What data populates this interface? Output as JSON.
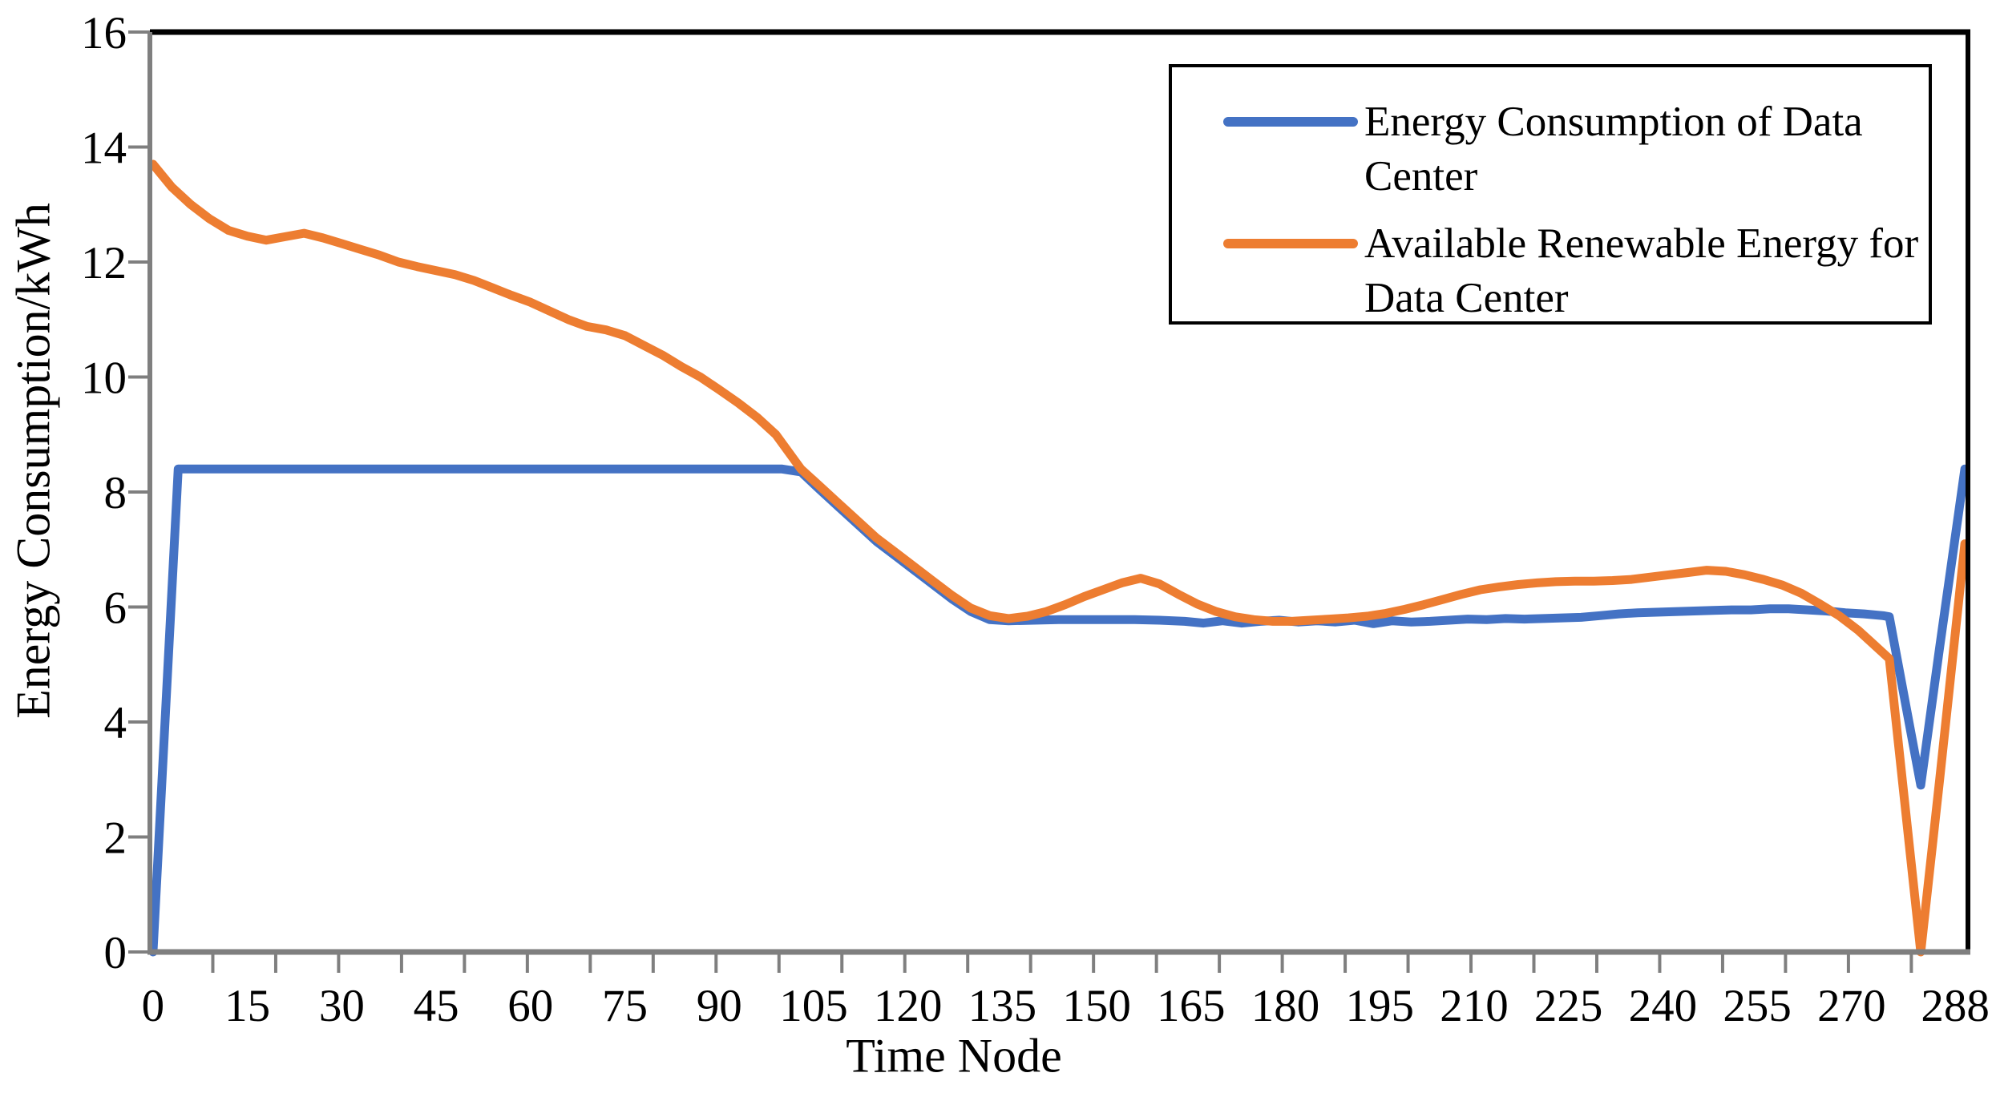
{
  "chart_data": {
    "type": "line",
    "grid": false,
    "background_color": "#ffffff",
    "plot_border_color": "#000000",
    "axis_line_color": "#7f7f7f",
    "x_axis": {
      "title": "Time Node",
      "range": [
        0,
        288
      ],
      "tick_labels": [
        "0",
        "15",
        "30",
        "45",
        "60",
        "75",
        "90",
        "105",
        "120",
        "135",
        "150",
        "165",
        "180",
        "195",
        "210",
        "225",
        "240",
        "255",
        "270",
        "288"
      ],
      "minor_tick_step": 10
    },
    "y_axis": {
      "title": "Energy Consumption/kWh",
      "range": [
        0,
        16
      ],
      "tick_step": 2,
      "tick_labels": [
        "0",
        "2",
        "4",
        "6",
        "8",
        "10",
        "12",
        "14",
        "16"
      ]
    },
    "legend": {
      "position": "top-right",
      "border": true
    },
    "series": [
      {
        "name": "Energy Consumption of Data Center",
        "color": "#4472C4",
        "points": [
          [
            0,
            0
          ],
          [
            4,
            8.4
          ],
          [
            10,
            8.4
          ],
          [
            20,
            8.4
          ],
          [
            30,
            8.4
          ],
          [
            40,
            8.4
          ],
          [
            50,
            8.4
          ],
          [
            60,
            8.4
          ],
          [
            70,
            8.4
          ],
          [
            80,
            8.4
          ],
          [
            90,
            8.4
          ],
          [
            95,
            8.4
          ],
          [
            100,
            8.4
          ],
          [
            103,
            8.35
          ],
          [
            106,
            8.04
          ],
          [
            109,
            7.74
          ],
          [
            112,
            7.44
          ],
          [
            115,
            7.14
          ],
          [
            118,
            6.89
          ],
          [
            121,
            6.64
          ],
          [
            124,
            6.39
          ],
          [
            127,
            6.14
          ],
          [
            130,
            5.92
          ],
          [
            133,
            5.78
          ],
          [
            136,
            5.76
          ],
          [
            140,
            5.77
          ],
          [
            144,
            5.78
          ],
          [
            148,
            5.78
          ],
          [
            152,
            5.78
          ],
          [
            156,
            5.78
          ],
          [
            160,
            5.77
          ],
          [
            164,
            5.75
          ],
          [
            167,
            5.72
          ],
          [
            170,
            5.76
          ],
          [
            173,
            5.72
          ],
          [
            176,
            5.75
          ],
          [
            179,
            5.77
          ],
          [
            182,
            5.74
          ],
          [
            185,
            5.76
          ],
          [
            188,
            5.74
          ],
          [
            191,
            5.77
          ],
          [
            194,
            5.71
          ],
          [
            197,
            5.76
          ],
          [
            200,
            5.74
          ],
          [
            203,
            5.75
          ],
          [
            206,
            5.77
          ],
          [
            209,
            5.79
          ],
          [
            212,
            5.78
          ],
          [
            215,
            5.8
          ],
          [
            218,
            5.79
          ],
          [
            221,
            5.8
          ],
          [
            224,
            5.81
          ],
          [
            227,
            5.82
          ],
          [
            230,
            5.85
          ],
          [
            233,
            5.88
          ],
          [
            236,
            5.9
          ],
          [
            239,
            5.91
          ],
          [
            242,
            5.92
          ],
          [
            245,
            5.93
          ],
          [
            248,
            5.94
          ],
          [
            251,
            5.95
          ],
          [
            254,
            5.95
          ],
          [
            257,
            5.97
          ],
          [
            260,
            5.97
          ],
          [
            263,
            5.95
          ],
          [
            266,
            5.93
          ],
          [
            269,
            5.9
          ],
          [
            272,
            5.88
          ],
          [
            275,
            5.85
          ],
          [
            276,
            5.83
          ],
          [
            281,
            2.9
          ],
          [
            284,
            5.3
          ],
          [
            288,
            8.4
          ]
        ]
      },
      {
        "name": "Available Renewable Energy for Data Center",
        "color": "#ED7D31",
        "points": [
          [
            0,
            13.7
          ],
          [
            3,
            13.3
          ],
          [
            6,
            13.0
          ],
          [
            9,
            12.75
          ],
          [
            12,
            12.55
          ],
          [
            15,
            12.45
          ],
          [
            18,
            12.38
          ],
          [
            21,
            12.44
          ],
          [
            24,
            12.5
          ],
          [
            27,
            12.42
          ],
          [
            30,
            12.32
          ],
          [
            33,
            12.22
          ],
          [
            36,
            12.12
          ],
          [
            39,
            12.0
          ],
          [
            42,
            11.92
          ],
          [
            45,
            11.85
          ],
          [
            48,
            11.78
          ],
          [
            51,
            11.68
          ],
          [
            54,
            11.55
          ],
          [
            57,
            11.42
          ],
          [
            60,
            11.3
          ],
          [
            63,
            11.15
          ],
          [
            66,
            11.0
          ],
          [
            69,
            10.88
          ],
          [
            72,
            10.82
          ],
          [
            75,
            10.72
          ],
          [
            78,
            10.55
          ],
          [
            81,
            10.38
          ],
          [
            84,
            10.18
          ],
          [
            87,
            10.0
          ],
          [
            90,
            9.78
          ],
          [
            93,
            9.55
          ],
          [
            96,
            9.3
          ],
          [
            99,
            9.0
          ],
          [
            103,
            8.4
          ],
          [
            106,
            8.1
          ],
          [
            109,
            7.8
          ],
          [
            112,
            7.5
          ],
          [
            115,
            7.2
          ],
          [
            118,
            6.95
          ],
          [
            121,
            6.7
          ],
          [
            124,
            6.45
          ],
          [
            127,
            6.2
          ],
          [
            130,
            5.98
          ],
          [
            133,
            5.85
          ],
          [
            136,
            5.8
          ],
          [
            139,
            5.84
          ],
          [
            142,
            5.92
          ],
          [
            145,
            6.04
          ],
          [
            148,
            6.18
          ],
          [
            151,
            6.3
          ],
          [
            154,
            6.42
          ],
          [
            157,
            6.5
          ],
          [
            160,
            6.4
          ],
          [
            163,
            6.22
          ],
          [
            166,
            6.05
          ],
          [
            169,
            5.92
          ],
          [
            172,
            5.83
          ],
          [
            175,
            5.78
          ],
          [
            178,
            5.75
          ],
          [
            181,
            5.75
          ],
          [
            184,
            5.77
          ],
          [
            187,
            5.79
          ],
          [
            190,
            5.81
          ],
          [
            193,
            5.84
          ],
          [
            196,
            5.89
          ],
          [
            199,
            5.96
          ],
          [
            202,
            6.04
          ],
          [
            205,
            6.13
          ],
          [
            208,
            6.22
          ],
          [
            211,
            6.3
          ],
          [
            214,
            6.35
          ],
          [
            217,
            6.39
          ],
          [
            220,
            6.42
          ],
          [
            223,
            6.44
          ],
          [
            226,
            6.45
          ],
          [
            229,
            6.45
          ],
          [
            232,
            6.46
          ],
          [
            235,
            6.48
          ],
          [
            238,
            6.52
          ],
          [
            241,
            6.56
          ],
          [
            244,
            6.6
          ],
          [
            247,
            6.64
          ],
          [
            250,
            6.62
          ],
          [
            253,
            6.56
          ],
          [
            256,
            6.48
          ],
          [
            259,
            6.38
          ],
          [
            262,
            6.24
          ],
          [
            265,
            6.05
          ],
          [
            268,
            5.85
          ],
          [
            271,
            5.6
          ],
          [
            273,
            5.4
          ],
          [
            276,
            5.1
          ],
          [
            281,
            0
          ],
          [
            284,
            3.0
          ],
          [
            288,
            7.1
          ]
        ]
      }
    ]
  }
}
